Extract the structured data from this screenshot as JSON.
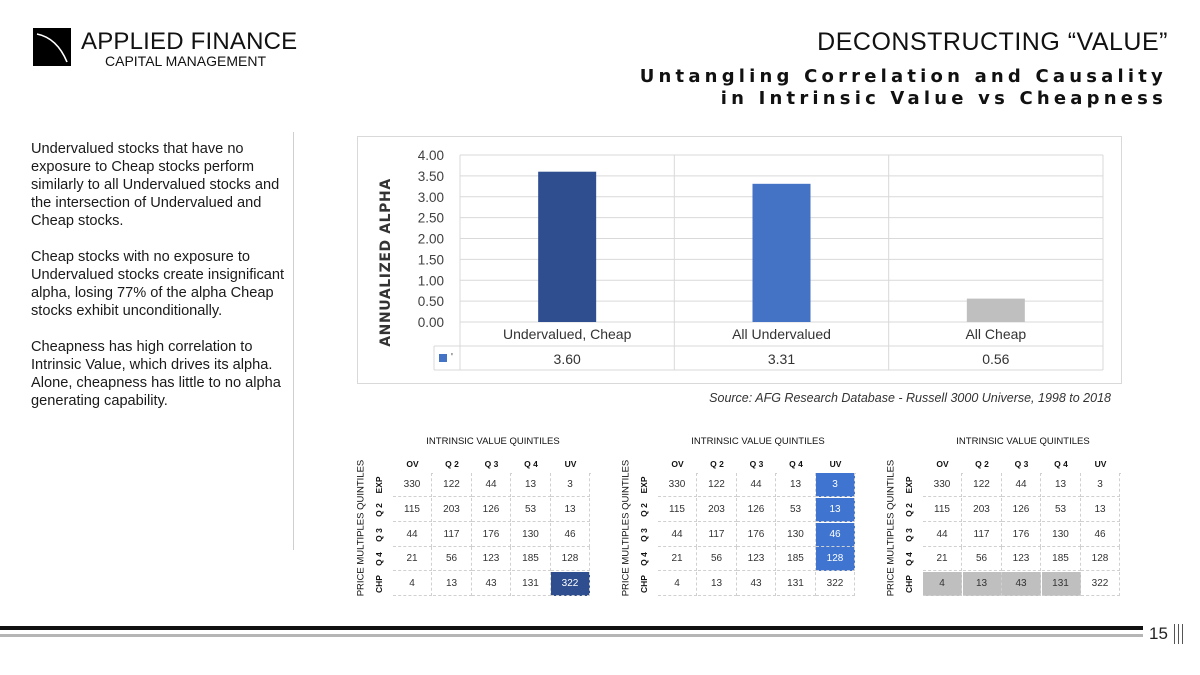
{
  "header": {
    "logo_line1": "APPLIED FINANCE",
    "logo_line2": "CAPITAL MANAGEMENT",
    "title": "DECONSTRUCTING “VALUE”",
    "subtitle_line1": "Untangling Correlation and Causality",
    "subtitle_line2": "in Intrinsic Value vs Cheapness"
  },
  "bullets": [
    "Undervalued stocks that have no exposure to Cheap stocks perform similarly to all Undervalued stocks and the intersection of Undervalued and Cheap stocks.",
    "Cheap stocks with no exposure to Undervalued stocks create insignificant alpha, losing 77% of the alpha Cheap stocks exhibit unconditionally.",
    "Cheapness has high correlation to Intrinsic Value,  which drives its alpha. Alone, cheapness has little to no alpha generating capability."
  ],
  "chart_data": {
    "type": "bar",
    "categories": [
      "Undervalued, Cheap",
      "All Undervalued",
      "All Cheap"
    ],
    "values": [
      3.6,
      3.31,
      0.56
    ],
    "value_labels": [
      "3.60",
      "3.31",
      "0.56"
    ],
    "title": "",
    "xlabel": "",
    "ylabel": "ANNUALIZED ALPHA",
    "ylim": [
      0,
      4
    ],
    "yticks": [
      "0.00",
      "0.50",
      "1.00",
      "1.50",
      "2.00",
      "2.50",
      "3.00",
      "3.50",
      "4.00"
    ],
    "bar_colors": [
      "#2e4e8f",
      "#4472c4",
      "#bfbfbf"
    ],
    "legend_marker_color": "#4472c4",
    "legend_text": "'",
    "grid": true,
    "data_table": true
  },
  "source": "Source: AFG Research Database - Russell 3000 Universe, 1998 to 2018",
  "matrices": {
    "column_title": "INTRINSIC VALUE QUINTILES",
    "row_title": "PRICE MULTIPLES QUINTILES",
    "col_headers": [
      "OV",
      "Q 2",
      "Q 3",
      "Q 4",
      "UV"
    ],
    "row_headers": [
      "EXP",
      "Q 2",
      "Q 3",
      "Q 4",
      "CHP"
    ],
    "values": [
      [
        330,
        122,
        44,
        13,
        3
      ],
      [
        115,
        203,
        126,
        53,
        13
      ],
      [
        44,
        117,
        176,
        130,
        46
      ],
      [
        21,
        56,
        123,
        185,
        128
      ],
      [
        4,
        13,
        43,
        131,
        322
      ]
    ],
    "highlight_colors": {
      "dark": "#2e4e8f",
      "blue": "#3f75d0",
      "grey": "#bfbfbf"
    }
  },
  "footer": {
    "page_number": "15"
  }
}
